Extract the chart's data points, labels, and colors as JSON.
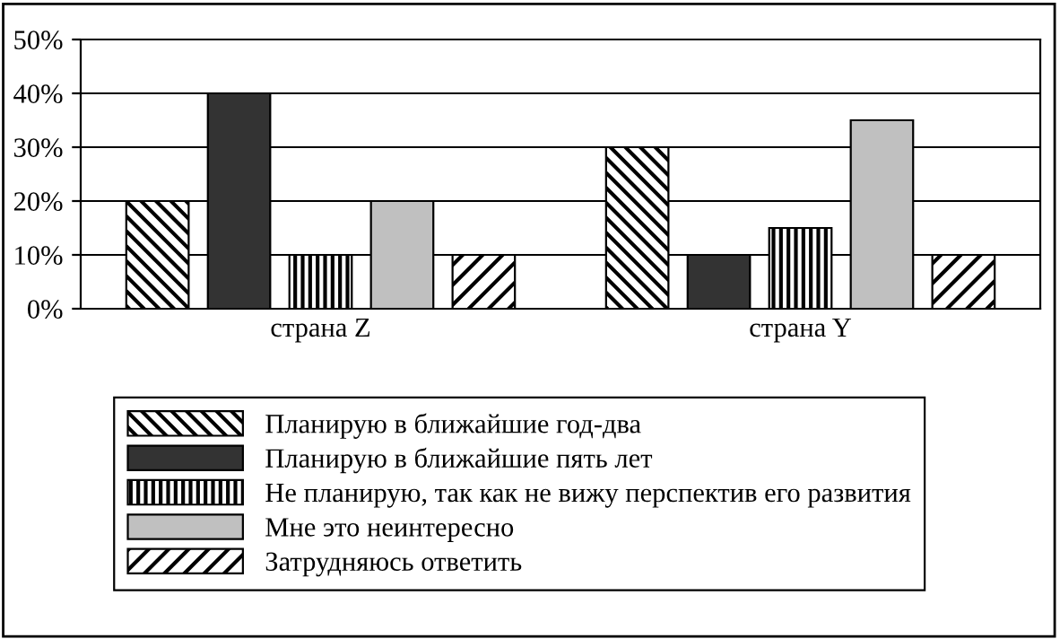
{
  "chart_data": {
    "type": "bar",
    "categories": [
      "страна Z",
      "страна Y"
    ],
    "series": [
      {
        "name": "Планирую в ближайшие год-два",
        "color": "#000000",
        "values": [
          20,
          30
        ]
      },
      {
        "name": "Планирую в ближайшие пять лет",
        "color": "#333333",
        "values": [
          40,
          10
        ]
      },
      {
        "name": "Не планирую, так как не вижу перспектив его развития",
        "color": "#000000",
        "values": [
          10,
          15
        ]
      },
      {
        "name": "Мне это неинтересно",
        "color": "#c0c0c0",
        "values": [
          20,
          35
        ]
      },
      {
        "name": "Затрудняюсь ответить",
        "color": "#000000",
        "values": [
          10,
          10
        ]
      }
    ],
    "ylim": [
      0,
      50
    ],
    "yticks": [
      {
        "value": 0,
        "label": "0%"
      },
      {
        "value": 10,
        "label": "10%"
      },
      {
        "value": 20,
        "label": "20%"
      },
      {
        "value": 30,
        "label": "30%"
      },
      {
        "value": 40,
        "label": "40%"
      },
      {
        "value": 50,
        "label": "50%"
      }
    ],
    "grid": "y",
    "legend": "bottom"
  }
}
